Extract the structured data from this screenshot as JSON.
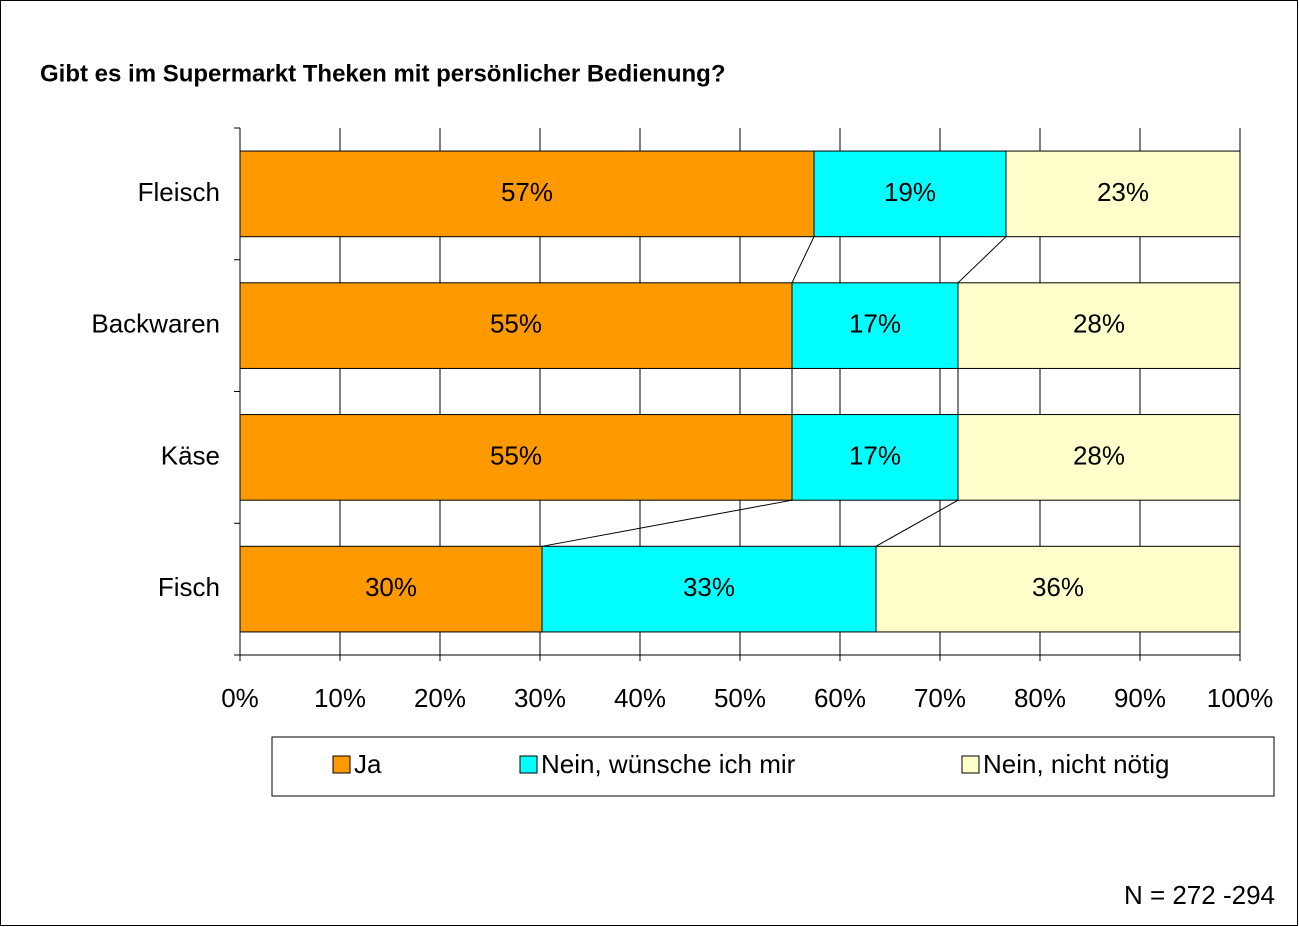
{
  "chart_data": {
    "type": "bar",
    "stacked": true,
    "horizontal": true,
    "series_lines": true,
    "grid": true,
    "title": "Gibt es im Supermarkt Theken mit persönlicher Bedienung?",
    "note": "N = 272 -294",
    "categories": [
      "Fleisch",
      "Backwaren",
      "Käse",
      "Fisch"
    ],
    "series": [
      {
        "name": "Ja",
        "color": "#FF9900",
        "values": [
          57.4,
          55.2,
          55.2,
          30.2
        ],
        "value_labels": [
          "57%",
          "55%",
          "55%",
          "30%"
        ]
      },
      {
        "name": "Nein, wünsche ich mir",
        "color": "#00FFFF",
        "values": [
          19.2,
          16.6,
          16.6,
          33.4
        ],
        "value_labels": [
          "19%",
          "17%",
          "17%",
          "33%"
        ]
      },
      {
        "name": "Nein, nicht nötig",
        "color": "#FFFFCC",
        "values": [
          23.4,
          28.2,
          28.2,
          36.4
        ],
        "value_labels": [
          "23%",
          "28%",
          "28%",
          "36%"
        ]
      }
    ],
    "xlim": [
      0,
      100
    ],
    "xticks": [
      {
        "value": 0,
        "label": "0%"
      },
      {
        "value": 10,
        "label": "10%"
      },
      {
        "value": 20,
        "label": "20%"
      },
      {
        "value": 30,
        "label": "30%"
      },
      {
        "value": 40,
        "label": "40%"
      },
      {
        "value": 50,
        "label": "50%"
      },
      {
        "value": 60,
        "label": "60%"
      },
      {
        "value": 70,
        "label": "70%"
      },
      {
        "value": 80,
        "label": "80%"
      },
      {
        "value": 90,
        "label": "90%"
      },
      {
        "value": 100,
        "label": "100%"
      }
    ]
  }
}
